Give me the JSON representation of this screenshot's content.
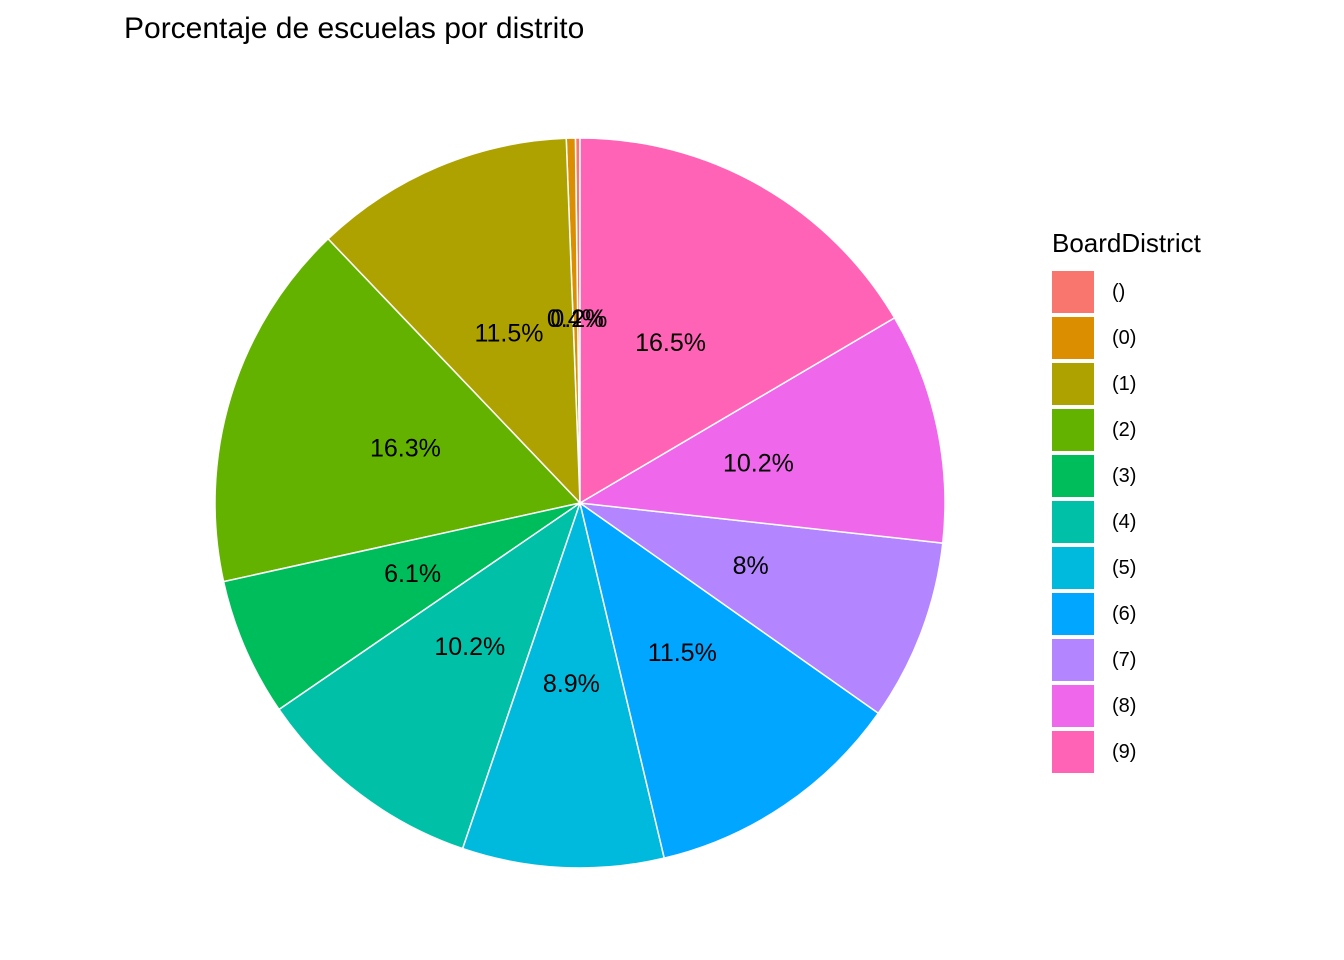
{
  "chart_data": {
    "type": "pie",
    "title": "Porcentaje de escuelas por distrito",
    "legend_title": "BoardDistrict",
    "legend_position": "right",
    "start_angle": "top",
    "direction": "counterclockwise",
    "slices": [
      {
        "category": "()",
        "value": 0.2,
        "label": "0.2%",
        "color": "#F8766D"
      },
      {
        "category": "(0)",
        "value": 0.4,
        "label": "0.4%",
        "color": "#DB8E00"
      },
      {
        "category": "(1)",
        "value": 11.5,
        "label": "11.5%",
        "color": "#AEA200"
      },
      {
        "category": "(2)",
        "value": 16.3,
        "label": "16.3%",
        "color": "#64B200"
      },
      {
        "category": "(3)",
        "value": 6.1,
        "label": "6.1%",
        "color": "#00BD5C"
      },
      {
        "category": "(4)",
        "value": 10.2,
        "label": "10.2%",
        "color": "#00C1A7"
      },
      {
        "category": "(5)",
        "value": 8.9,
        "label": "8.9%",
        "color": "#00BADE"
      },
      {
        "category": "(6)",
        "value": 11.5,
        "label": "11.5%",
        "color": "#00A6FF"
      },
      {
        "category": "(7)",
        "value": 8.0,
        "label": "8%",
        "color": "#B385FF"
      },
      {
        "category": "(8)",
        "value": 10.2,
        "label": "10.2%",
        "color": "#EF67EB"
      },
      {
        "category": "(9)",
        "value": 16.5,
        "label": "16.5%",
        "color": "#FF63B6"
      }
    ]
  }
}
